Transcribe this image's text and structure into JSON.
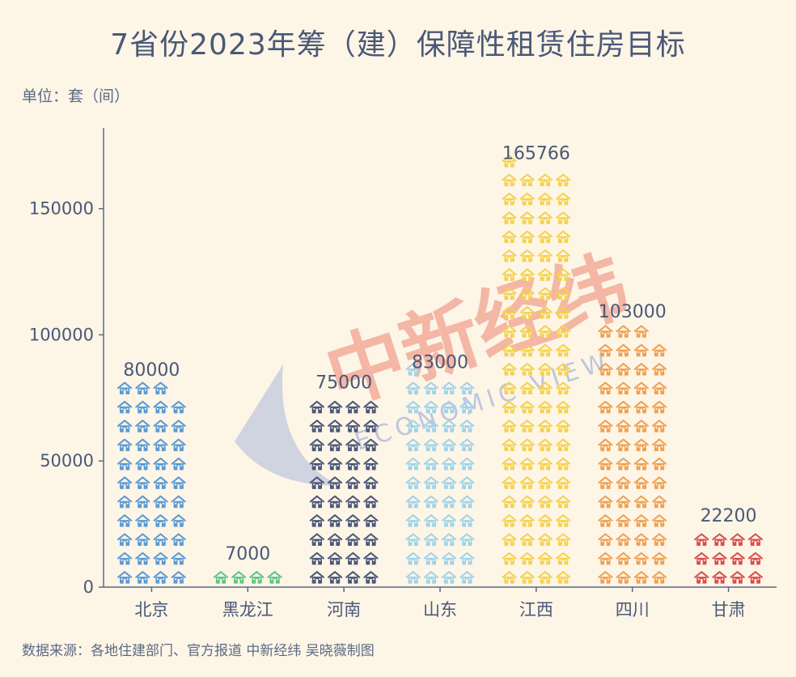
{
  "title": "7省份2023年筹（建）保障性租赁住房目标",
  "unit_label": "单位：套（间）",
  "source": "数据来源：各地住建部门、官方报道 中新经纬 吴晓薇制图",
  "watermark": {
    "text": "中新经纬",
    "subtext": "ECONOMIC VIEW"
  },
  "chart_data": {
    "type": "bar",
    "title": "7省份2023年筹（建）保障性租赁住房目标",
    "ylabel": "单位：套（间）",
    "categories": [
      "北京",
      "黑龙江",
      "河南",
      "山东",
      "江西",
      "四川",
      "甘肃"
    ],
    "values": [
      80000,
      7000,
      75000,
      83000,
      165766,
      103000,
      22200
    ],
    "data_labels": [
      "80000",
      "7000",
      "75000",
      "83000",
      "165766",
      "103000",
      "22200"
    ],
    "yticks": [
      0,
      50000,
      100000,
      150000
    ],
    "ytick_labels": [
      "0",
      "50000",
      "100000",
      "150000"
    ],
    "ylim": [
      0,
      182000
    ],
    "grid": false,
    "colors": [
      "#5b9bd5",
      "#5cc785",
      "#4b5878",
      "#9fd3ea",
      "#f5d24c",
      "#f0a152",
      "#d94f4f"
    ],
    "mark": "house-icon"
  }
}
